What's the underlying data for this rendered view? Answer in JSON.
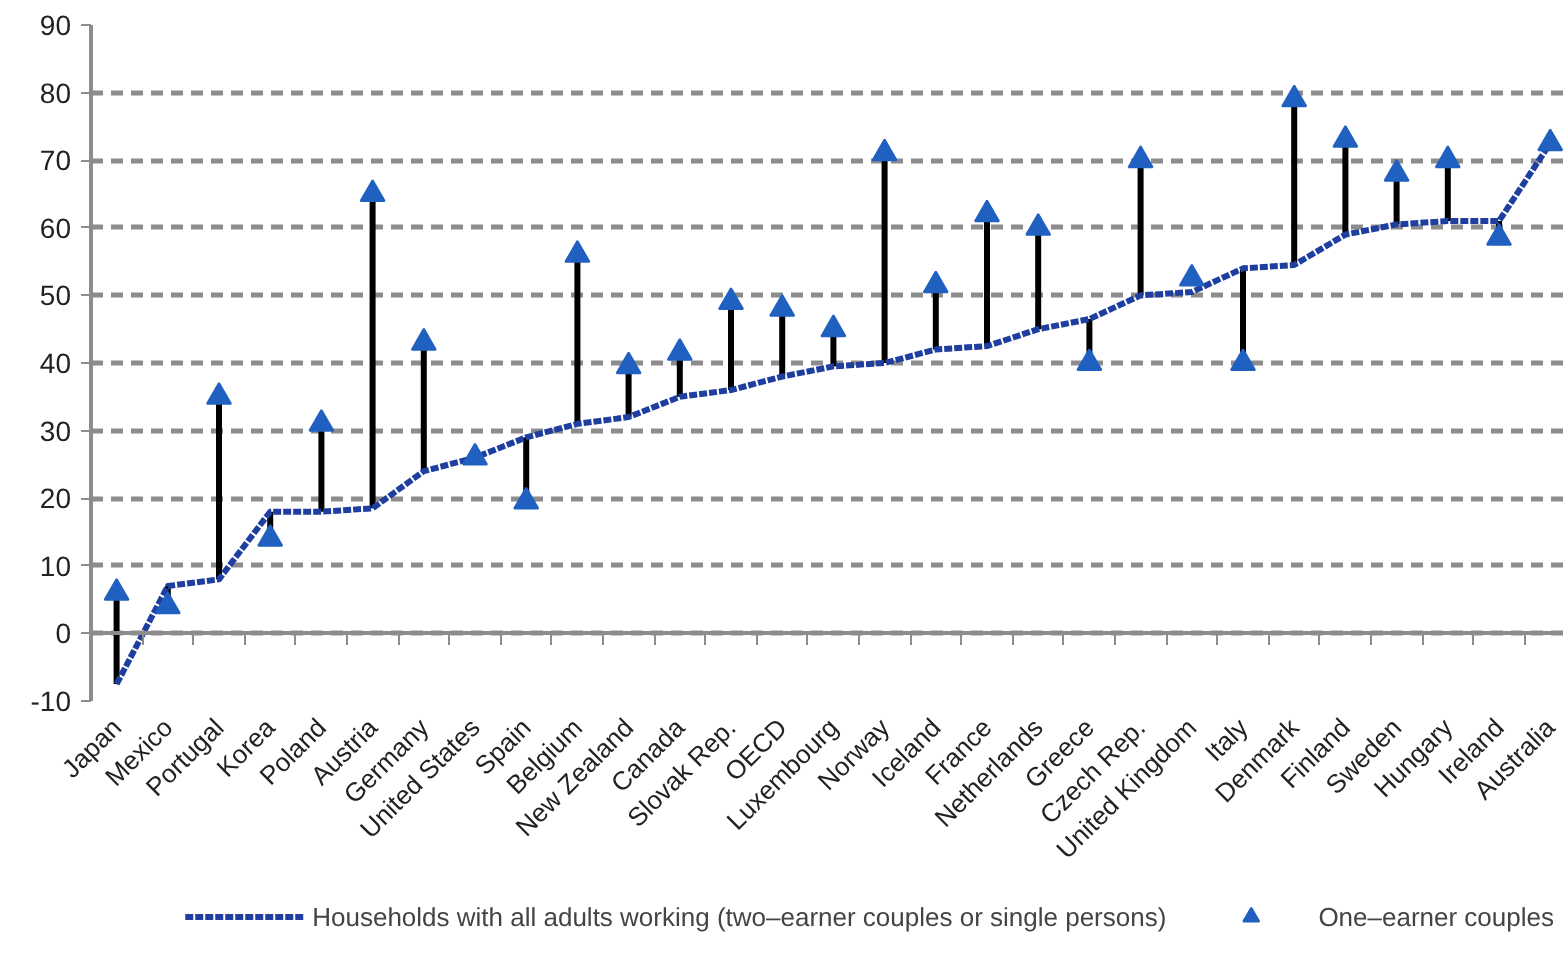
{
  "chart_data": {
    "type": "line",
    "categories": [
      "Japan",
      "Mexico",
      "Portugal",
      "Korea",
      "Poland",
      "Austria",
      "Germany",
      "United States",
      "Spain",
      "Belgium",
      "New Zealand",
      "Canada",
      "Slovak Rep.",
      "OECD",
      "Luxembourg",
      "Norway",
      "Iceland",
      "France",
      "Netherlands",
      "Greece",
      "Czech Rep.",
      "United Kingdom",
      "Italy",
      "Denmark",
      "Finland",
      "Sweden",
      "Hungary",
      "Ireland",
      "Australia"
    ],
    "series": [
      {
        "name": "Households with all adults working (two–earner couples or single persons)",
        "color": "#1f3fa0",
        "line_style": "dashed",
        "values": [
          -7.5,
          7,
          8,
          18,
          18,
          18.5,
          24,
          26,
          29,
          31,
          32,
          35,
          36,
          38,
          39.5,
          40,
          42,
          42.5,
          45,
          46.5,
          50,
          50.5,
          54,
          54.5,
          59,
          60.5,
          61,
          61,
          72.5
        ]
      },
      {
        "name": "One–earner couples",
        "type": "scatter",
        "color": "#2060c0",
        "marker": "triangle",
        "values": [
          6,
          4,
          35,
          14,
          31,
          65,
          43,
          26,
          19.5,
          56,
          39.5,
          41.5,
          49,
          48,
          45,
          71,
          51.5,
          62,
          60,
          40,
          70,
          52.5,
          40,
          79,
          73,
          68,
          70,
          58.5,
          72.5
        ],
        "errors": [
          [
            -7.5,
            6
          ],
          [
            4,
            7
          ],
          [
            8,
            35
          ],
          [
            14,
            18
          ],
          [
            18,
            31
          ],
          [
            18.5,
            65
          ],
          [
            24,
            43
          ],
          null,
          [
            19.5,
            29
          ],
          [
            31,
            56
          ],
          [
            32,
            39.5
          ],
          [
            35,
            41.5
          ],
          [
            36,
            49
          ],
          [
            38,
            48
          ],
          [
            39.5,
            45
          ],
          [
            40,
            71
          ],
          [
            42,
            51.5
          ],
          [
            42.5,
            62
          ],
          [
            45,
            60
          ],
          [
            40,
            46.5
          ],
          [
            50,
            70
          ],
          null,
          [
            40,
            54
          ],
          [
            54.5,
            79
          ],
          [
            59,
            73
          ],
          [
            60.5,
            68
          ],
          [
            61,
            70
          ],
          [
            58.5,
            61
          ],
          null
        ]
      }
    ],
    "ylim": [
      -10,
      90
    ],
    "yticks": [
      -10,
      0,
      10,
      20,
      30,
      40,
      50,
      60,
      70,
      80,
      90
    ],
    "grid": "y",
    "legend": "bottom"
  }
}
